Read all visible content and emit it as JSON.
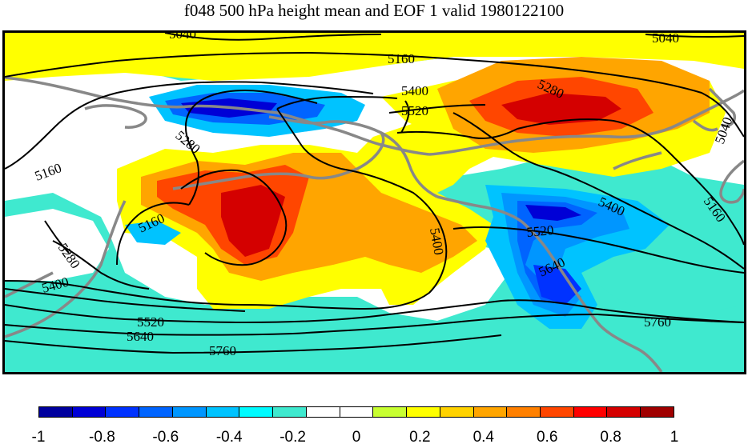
{
  "title": "f048 500 hPa height mean and EOF 1 valid 1980122100",
  "contour_labels": [
    "5040",
    "5040",
    "5040",
    "5160",
    "5160",
    "5160",
    "5160",
    "5280",
    "5280",
    "5280",
    "5400",
    "5400",
    "5400",
    "5400",
    "5520",
    "5520",
    "5520",
    "5640",
    "5640",
    "5760",
    "5760"
  ],
  "colorbar": {
    "colors": [
      "#00009e",
      "#0000d6",
      "#0032ff",
      "#0064ff",
      "#0096ff",
      "#00c3ff",
      "#00fbff",
      "#3fe9cf",
      "#ffffff",
      "#ffffff",
      "#c8ff32",
      "#ffff00",
      "#ffd200",
      "#ffa500",
      "#ff8000",
      "#ff4600",
      "#ff0000",
      "#d40000",
      "#a00000"
    ],
    "tick_labels": [
      "-1",
      "-0.8",
      "-0.6",
      "-0.4",
      "-0.2",
      "0",
      "0.2",
      "0.4",
      "0.6",
      "0.8",
      "1"
    ]
  }
}
